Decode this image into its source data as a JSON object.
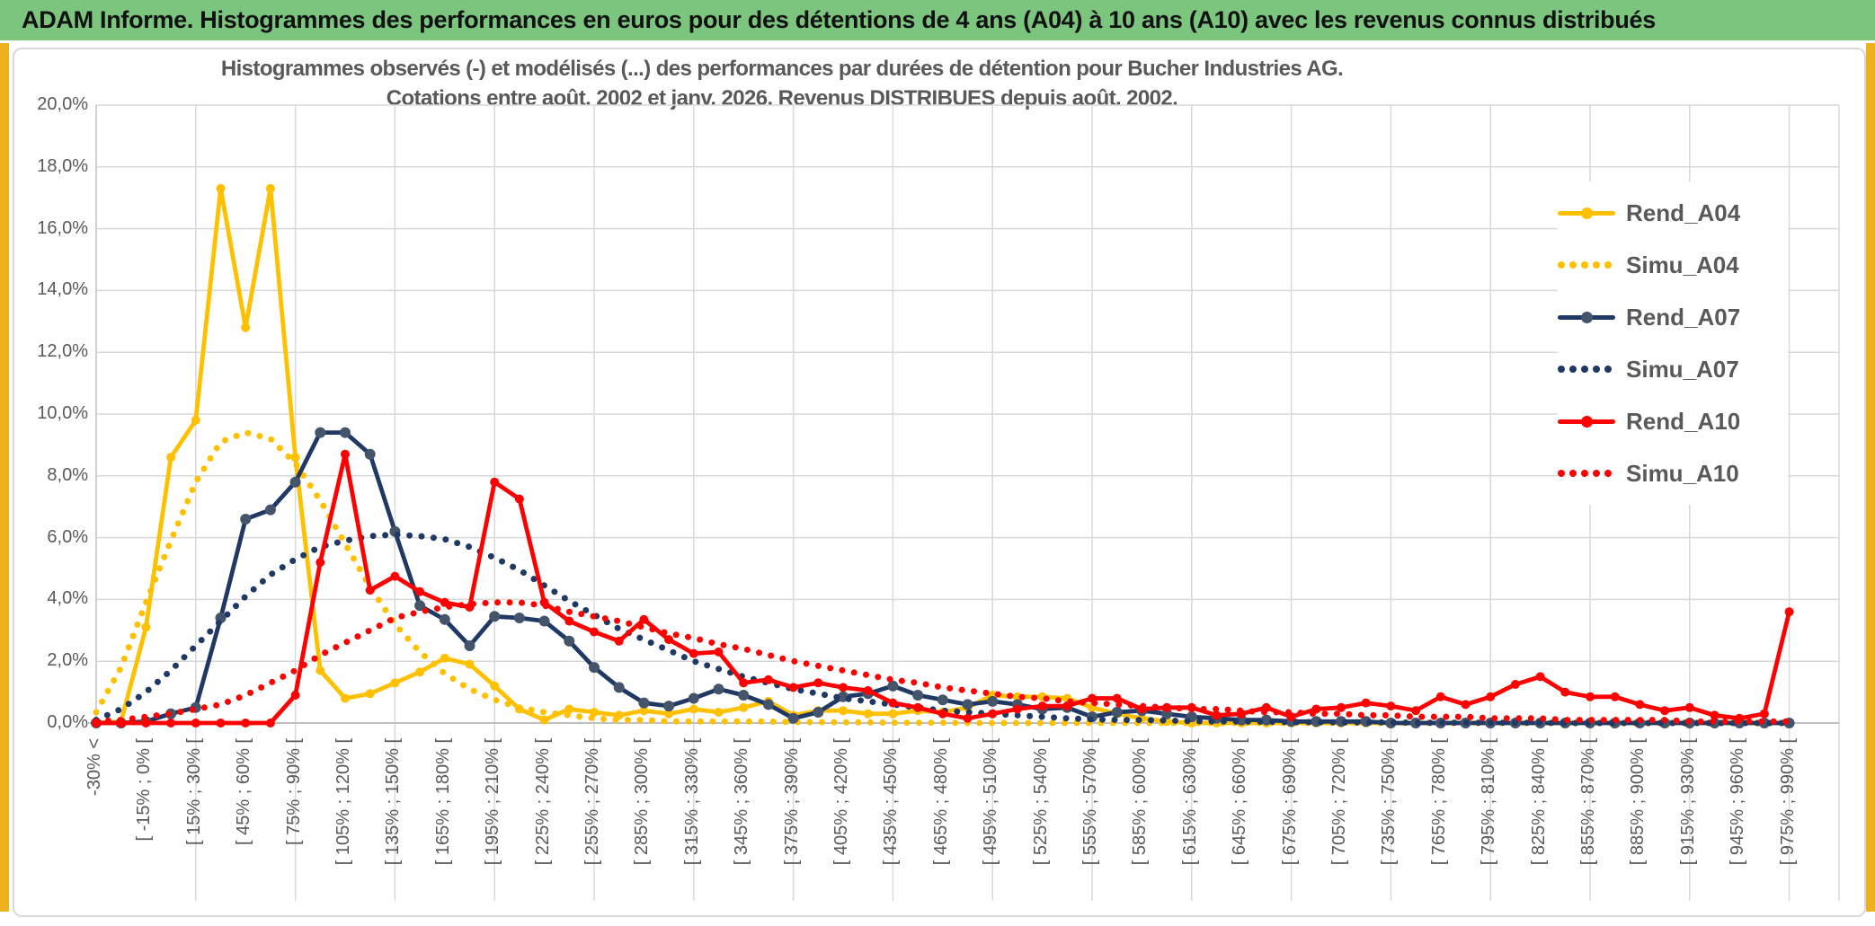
{
  "header": {
    "title": "ADAM Informe. Histogrammes des performances en euros pour des détentions de 4 ans (A04) à 10 ans (A10) avec les revenus connus distribués",
    "bg_color": "#7CC57F",
    "strip_color": "#EDB01F"
  },
  "chart": {
    "title_line1": "Histogrammes observés (-) et modélisés (...) des performances par durées de détention pour Bucher Industries AG.",
    "title_line2": "Cotations entre août. 2002 et janv. 2026. Revenus DISTRIBUES depuis août. 2002.",
    "text_color": "#595959",
    "gridline_color": "#D9D9D9",
    "axis_color": "#BFBFBF"
  },
  "chart_data": {
    "type": "line",
    "title": "Histogrammes observés (-) et modélisés (...) des performances par durées de détention pour Bucher Industries AG. Cotations entre août. 2002 et janv. 2026. Revenus DISTRIBUES depuis août. 2002.",
    "ylabel": "",
    "xlabel": "",
    "ylim": [
      0,
      20
    ],
    "ytick_step": 2,
    "y_tick_labels": [
      "0,0%",
      "2,0%",
      "4,0%",
      "6,0%",
      "8,0%",
      "10,0%",
      "12,0%",
      "14,0%",
      "16,0%",
      "18,0%",
      "20,0%"
    ],
    "grid": true,
    "legend_position": "right",
    "n_bins": 69,
    "x_bins_note": "69 bins of 15% performance width; every second bin carries a tick label",
    "x_tick_labels": [
      "-30% <",
      "[ -15% ; 0% [",
      "[ 15% ; 30% [",
      "[ 45% ; 60% [",
      "[ 75% ; 90% [",
      "[ 105% ; 120% [",
      "[ 135% ; 150% [",
      "[ 165% ; 180% [",
      "[ 195% ; 210% [",
      "[ 225% ; 240% [",
      "[ 255% ; 270% [",
      "[ 285% ; 300% [",
      "[ 315% ; 330% [",
      "[ 345% ; 360% [",
      "[ 375% ; 390% [",
      "[ 405% ; 420% [",
      "[ 435% ; 450% [",
      "[ 465% ; 480% [",
      "[ 495% ; 510% [",
      "[ 525% ; 540% [",
      "[ 555% ; 570% [",
      "[ 585% ; 600% [",
      "[ 615% ; 630% [",
      "[ 645% ; 660% [",
      "[ 675% ; 690% [",
      "[ 705% ; 720% [",
      "[ 735% ; 750% [",
      "[ 765% ; 780% [",
      "[ 795% ; 810% [",
      "[ 825% ; 840% [",
      "[ 855% ; 870% [",
      "[ 885% ; 900% [",
      "[ 915% ; 930% [",
      "[ 945% ; 960% [",
      "[ 975% ; 990% ["
    ],
    "series": [
      {
        "name": "Rend_A04",
        "color": "#FFC000",
        "dotted": false,
        "marker_color": "#FFC000",
        "values": [
          0,
          0.05,
          3.1,
          8.6,
          9.8,
          17.3,
          12.8,
          17.3,
          8.6,
          1.7,
          0.8,
          0.95,
          1.3,
          1.65,
          2.1,
          1.9,
          1.2,
          0.45,
          0.1,
          0.45,
          0.35,
          0.25,
          0.4,
          0.3,
          0.45,
          0.35,
          0.5,
          0.7,
          0.25,
          0.4,
          0.4,
          0.3,
          0.3,
          0.4,
          0.35,
          0.5,
          0.9,
          0.85,
          0.85,
          0.8,
          0.5,
          0.3,
          0.15,
          0.05,
          0,
          0,
          0,
          0,
          0,
          0,
          0,
          0,
          0,
          0,
          0,
          0,
          0,
          0,
          0,
          0,
          0,
          0,
          0,
          0,
          0,
          0,
          0,
          0,
          0
        ]
      },
      {
        "name": "Simu_A04",
        "color": "#FFC000",
        "dotted": true,
        "values": [
          0.35,
          1.8,
          3.9,
          5.9,
          7.8,
          9.1,
          9.4,
          9.2,
          8.4,
          7.2,
          5.8,
          4.4,
          3.2,
          2.3,
          1.6,
          1.1,
          0.75,
          0.5,
          0.35,
          0.25,
          0.15,
          0.1,
          0.1,
          0.05,
          0.05,
          0.05,
          0.05,
          0.05,
          0.03,
          0.03,
          0.02,
          0.02,
          0.01,
          0.01,
          0.01,
          0,
          0,
          0,
          0,
          0,
          0,
          0,
          0,
          0,
          0,
          0,
          0,
          0,
          0,
          0,
          0,
          0,
          0,
          0,
          0,
          0,
          0,
          0,
          0,
          0,
          0,
          0,
          0,
          0,
          0,
          0,
          0,
          0,
          0
        ]
      },
      {
        "name": "Rend_A07",
        "color": "#203864",
        "dotted": false,
        "marker_color": "#44546A",
        "values": [
          0,
          0,
          0.05,
          0.3,
          0.5,
          3.4,
          6.6,
          6.9,
          7.8,
          9.4,
          9.4,
          8.7,
          6.2,
          3.8,
          3.35,
          2.5,
          3.45,
          3.4,
          3.3,
          2.65,
          1.8,
          1.15,
          0.65,
          0.55,
          0.8,
          1.1,
          0.9,
          0.6,
          0.15,
          0.35,
          0.85,
          0.95,
          1.2,
          0.9,
          0.75,
          0.6,
          0.7,
          0.6,
          0.45,
          0.5,
          0.2,
          0.35,
          0.4,
          0.3,
          0.2,
          0.15,
          0.1,
          0.1,
          0.05,
          0.05,
          0.05,
          0.05,
          0,
          0,
          0,
          0,
          0,
          0,
          0,
          0,
          0,
          0,
          0,
          0,
          0,
          0,
          0,
          0,
          0
        ]
      },
      {
        "name": "Simu_A07",
        "color": "#203864",
        "dotted": true,
        "values": [
          0.1,
          0.45,
          1.0,
          1.7,
          2.5,
          3.3,
          4.1,
          4.8,
          5.3,
          5.7,
          5.9,
          6.05,
          6.1,
          6.05,
          5.95,
          5.7,
          5.35,
          4.95,
          4.45,
          3.95,
          3.5,
          3.05,
          2.7,
          2.35,
          2.0,
          1.75,
          1.5,
          1.3,
          1.1,
          0.95,
          0.8,
          0.7,
          0.6,
          0.5,
          0.4,
          0.35,
          0.3,
          0.25,
          0.2,
          0.15,
          0.12,
          0.1,
          0.1,
          0.08,
          0.06,
          0.05,
          0.05,
          0.04,
          0.03,
          0.03,
          0.02,
          0.02,
          0.02,
          0.01,
          0.01,
          0.01,
          0.01,
          0.01,
          0.01,
          0,
          0,
          0,
          0,
          0,
          0,
          0,
          0,
          0,
          0
        ]
      },
      {
        "name": "Rend_A10",
        "color": "#FF0000",
        "dotted": false,
        "marker_color": "#FF0000",
        "values": [
          0,
          0,
          0,
          0,
          0,
          0,
          0,
          0,
          0.9,
          5.2,
          8.7,
          4.3,
          4.75,
          4.25,
          3.9,
          3.75,
          7.8,
          7.25,
          3.9,
          3.3,
          2.95,
          2.65,
          3.35,
          2.7,
          2.25,
          2.3,
          1.3,
          1.4,
          1.15,
          1.3,
          1.15,
          1.05,
          0.65,
          0.5,
          0.3,
          0.15,
          0.3,
          0.45,
          0.55,
          0.55,
          0.8,
          0.8,
          0.45,
          0.5,
          0.5,
          0.25,
          0.3,
          0.5,
          0.2,
          0.45,
          0.5,
          0.65,
          0.55,
          0.4,
          0.85,
          0.6,
          0.85,
          1.25,
          1.5,
          1.0,
          0.85,
          0.85,
          0.6,
          0.4,
          0.5,
          0.25,
          0.15,
          0.3,
          3.6
        ]
      },
      {
        "name": "Simu_A10",
        "color": "#FF0000",
        "dotted": true,
        "values": [
          0.05,
          0.1,
          0.2,
          0.3,
          0.45,
          0.6,
          0.9,
          1.3,
          1.7,
          2.2,
          2.6,
          3.0,
          3.4,
          3.6,
          3.75,
          3.85,
          3.9,
          3.9,
          3.8,
          3.6,
          3.45,
          3.3,
          3.1,
          2.9,
          2.75,
          2.55,
          2.4,
          2.2,
          2.0,
          1.85,
          1.7,
          1.55,
          1.4,
          1.3,
          1.15,
          1.05,
          0.95,
          0.85,
          0.8,
          0.7,
          0.65,
          0.6,
          0.55,
          0.5,
          0.45,
          0.45,
          0.4,
          0.35,
          0.35,
          0.3,
          0.3,
          0.25,
          0.25,
          0.2,
          0.2,
          0.2,
          0.15,
          0.15,
          0.15,
          0.1,
          0.1,
          0.1,
          0.1,
          0.1,
          0.05,
          0.05,
          0.05,
          0.05,
          0.05
        ]
      }
    ]
  }
}
